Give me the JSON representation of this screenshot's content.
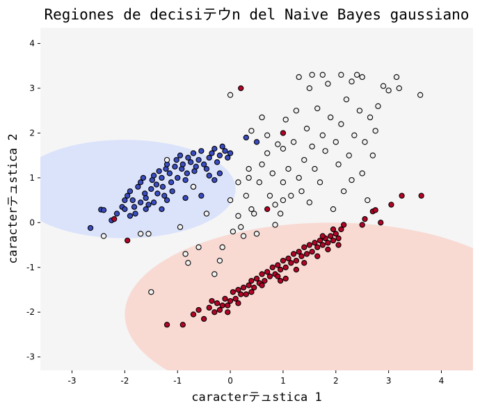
{
  "chart_data": {
    "type": "scatter",
    "title": "Regiones de decisiテウn del Naive Bayes gaussiano",
    "xlabel": "caracterテュstica 1",
    "ylabel": "caracterテュstica 2",
    "xlim": [
      -3.6,
      4.6
    ],
    "ylim": [
      -3.3,
      4.35
    ],
    "xticks": [
      -3,
      -2,
      -1,
      0,
      1,
      2,
      3,
      4
    ],
    "yticks": [
      -3,
      -2,
      -1,
      0,
      1,
      2,
      3,
      4
    ],
    "grid": false,
    "legend": "none",
    "colors": {
      "background": "#f5f5f5",
      "class_0_region": "#dbe3fb",
      "class_2_region": "#f8dad3",
      "class_0_point": "#3a4cc0",
      "class_1_point": "#f2f2f2",
      "class_2_point": "#b40426",
      "edge": "#000000"
    },
    "regions": [
      {
        "class": 0,
        "center": [
          -2.0,
          0.75
        ],
        "radii": [
          2.1,
          1.1
        ]
      },
      {
        "class": 2,
        "center": [
          1.9,
          -2.05
        ],
        "radii": [
          3.9,
          2.05
        ]
      }
    ],
    "series": [
      {
        "class": 0,
        "points": [
          [
            -2.65,
            -0.12
          ],
          [
            -2.45,
            0.29
          ],
          [
            -2.4,
            0.28
          ],
          [
            -2.25,
            0.05
          ],
          [
            -2.15,
            0.2
          ],
          [
            -2.05,
            0.35
          ],
          [
            -2.0,
            0.5
          ],
          [
            -1.95,
            0.6
          ],
          [
            -1.9,
            0.7
          ],
          [
            -1.85,
            0.5
          ],
          [
            -1.82,
            0.35
          ],
          [
            -1.8,
            0.2
          ],
          [
            -1.75,
            0.8
          ],
          [
            -1.7,
            0.9
          ],
          [
            -1.65,
            1.0
          ],
          [
            -1.62,
            0.65
          ],
          [
            -1.6,
            0.55
          ],
          [
            -1.55,
            0.4
          ],
          [
            -1.5,
            0.75
          ],
          [
            -1.48,
            0.95
          ],
          [
            -1.45,
            1.05
          ],
          [
            -1.4,
            0.85
          ],
          [
            -1.38,
            0.65
          ],
          [
            -1.35,
            1.15
          ],
          [
            -1.3,
            1.0
          ],
          [
            -1.28,
            0.8
          ],
          [
            -1.25,
            0.6
          ],
          [
            -1.22,
            1.2
          ],
          [
            -1.2,
            1.3
          ],
          [
            -1.15,
            1.1
          ],
          [
            -1.12,
            0.9
          ],
          [
            -1.1,
            0.7
          ],
          [
            -1.05,
            1.25
          ],
          [
            -1.02,
            1.4
          ],
          [
            -1.0,
            1.0
          ],
          [
            -0.95,
            1.5
          ],
          [
            -0.92,
            1.2
          ],
          [
            -0.9,
            1.3
          ],
          [
            -0.85,
            0.95
          ],
          [
            -0.82,
            1.1
          ],
          [
            -0.8,
            1.45
          ],
          [
            -0.75,
            1.35
          ],
          [
            -0.7,
            1.55
          ],
          [
            -0.68,
            1.15
          ],
          [
            -0.65,
            1.25
          ],
          [
            -0.6,
            1.4
          ],
          [
            -0.55,
            1.6
          ],
          [
            -0.5,
            1.3
          ],
          [
            -0.45,
            1.2
          ],
          [
            -0.4,
            1.45
          ],
          [
            -0.35,
            1.55
          ],
          [
            -0.3,
            1.65
          ],
          [
            -0.25,
            1.35
          ],
          [
            -0.2,
            1.5
          ],
          [
            -0.15,
            1.7
          ],
          [
            -0.1,
            1.6
          ],
          [
            -0.05,
            1.45
          ],
          [
            0.0,
            1.55
          ],
          [
            -0.3,
            0.95
          ],
          [
            -0.55,
            0.6
          ],
          [
            -0.85,
            0.55
          ],
          [
            -1.2,
            0.5
          ],
          [
            -1.6,
            0.3
          ],
          [
            -2.0,
            0.3
          ],
          [
            -1.9,
            0.15
          ],
          [
            -1.7,
            0.45
          ],
          [
            -1.3,
            0.3
          ],
          [
            0.3,
            1.9
          ],
          [
            0.5,
            1.8
          ],
          [
            -0.2,
            1.1
          ],
          [
            -0.4,
            1.05
          ],
          [
            -0.7,
            0.8
          ],
          [
            -1.45,
            0.45
          ]
        ]
      },
      {
        "class": 1,
        "points": [
          [
            -2.4,
            -0.3
          ],
          [
            -1.7,
            -0.25
          ],
          [
            -1.5,
            -1.55
          ],
          [
            -1.2,
            1.4
          ],
          [
            -0.95,
            -0.1
          ],
          [
            -0.85,
            -0.7
          ],
          [
            -0.7,
            0.8
          ],
          [
            -0.6,
            -0.55
          ],
          [
            -0.45,
            0.2
          ],
          [
            -0.3,
            -1.15
          ],
          [
            -0.15,
            -0.55
          ],
          [
            0.0,
            2.85
          ],
          [
            0.05,
            -0.2
          ],
          [
            0.15,
            0.15
          ],
          [
            0.2,
            -0.1
          ],
          [
            0.25,
            -0.3
          ],
          [
            0.3,
            0.6
          ],
          [
            0.35,
            1.0
          ],
          [
            0.4,
            2.05
          ],
          [
            0.4,
            0.3
          ],
          [
            0.45,
            0.2
          ],
          [
            0.5,
            -0.25
          ],
          [
            0.55,
            0.9
          ],
          [
            0.6,
            1.3
          ],
          [
            0.6,
            2.35
          ],
          [
            0.7,
            1.95
          ],
          [
            0.75,
            0.6
          ],
          [
            0.8,
            1.1
          ],
          [
            0.85,
            0.4
          ],
          [
            0.9,
            1.75
          ],
          [
            0.95,
            0.2
          ],
          [
            1.0,
            1.65
          ],
          [
            1.0,
            0.9
          ],
          [
            1.05,
            2.3
          ],
          [
            1.1,
            1.2
          ],
          [
            1.15,
            0.6
          ],
          [
            1.2,
            1.8
          ],
          [
            1.25,
            2.5
          ],
          [
            1.3,
            1.0
          ],
          [
            1.35,
            0.7
          ],
          [
            1.4,
            1.4
          ],
          [
            1.45,
            2.1
          ],
          [
            1.5,
            3.0
          ],
          [
            1.5,
            0.45
          ],
          [
            1.55,
            1.7
          ],
          [
            1.6,
            1.2
          ],
          [
            1.65,
            2.55
          ],
          [
            1.7,
            0.9
          ],
          [
            1.75,
            1.95
          ],
          [
            1.8,
            1.6
          ],
          [
            1.85,
            3.1
          ],
          [
            1.9,
            2.35
          ],
          [
            1.95,
            0.3
          ],
          [
            2.0,
            1.8
          ],
          [
            2.05,
            1.3
          ],
          [
            2.1,
            2.2
          ],
          [
            2.15,
            0.7
          ],
          [
            2.2,
            2.75
          ],
          [
            2.25,
            1.5
          ],
          [
            2.3,
            0.95
          ],
          [
            2.35,
            1.95
          ],
          [
            2.4,
            3.3
          ],
          [
            2.45,
            2.5
          ],
          [
            2.5,
            1.1
          ],
          [
            2.55,
            1.8
          ],
          [
            2.6,
            0.5
          ],
          [
            2.65,
            2.35
          ],
          [
            2.7,
            1.5
          ],
          [
            2.75,
            2.05
          ],
          [
            2.8,
            2.6
          ],
          [
            2.9,
            3.05
          ],
          [
            3.0,
            2.95
          ],
          [
            3.15,
            3.25
          ],
          [
            3.2,
            3.0
          ],
          [
            3.6,
            2.85
          ],
          [
            1.3,
            3.25
          ],
          [
            1.55,
            3.3
          ],
          [
            1.75,
            3.3
          ],
          [
            2.1,
            3.3
          ],
          [
            2.3,
            3.15
          ],
          [
            2.5,
            3.25
          ],
          [
            0.7,
            1.55
          ],
          [
            0.35,
            1.2
          ],
          [
            1.0,
            0.5
          ],
          [
            0.85,
            -0.05
          ],
          [
            -1.55,
            -0.25
          ],
          [
            -0.8,
            -0.9
          ],
          [
            0.15,
            0.9
          ],
          [
            0.0,
            0.5
          ],
          [
            -0.2,
            -0.85
          ]
        ]
      },
      {
        "class": 2,
        "points": [
          [
            -2.2,
            0.08
          ],
          [
            -1.95,
            -0.4
          ],
          [
            0.2,
            3.0
          ],
          [
            1.0,
            2.0
          ],
          [
            0.7,
            0.3
          ],
          [
            -1.2,
            -2.28
          ],
          [
            -0.9,
            -2.28
          ],
          [
            -0.7,
            -2.05
          ],
          [
            -0.6,
            -1.95
          ],
          [
            -0.5,
            -2.15
          ],
          [
            -0.4,
            -1.9
          ],
          [
            -0.35,
            -1.75
          ],
          [
            -0.3,
            -2.0
          ],
          [
            -0.25,
            -1.8
          ],
          [
            -0.2,
            -1.95
          ],
          [
            -0.15,
            -1.85
          ],
          [
            -0.1,
            -1.7
          ],
          [
            -0.05,
            -1.85
          ],
          [
            0.0,
            -1.75
          ],
          [
            0.05,
            -1.55
          ],
          [
            0.1,
            -1.7
          ],
          [
            0.15,
            -1.5
          ],
          [
            0.2,
            -1.6
          ],
          [
            0.25,
            -1.45
          ],
          [
            0.3,
            -1.6
          ],
          [
            0.35,
            -1.4
          ],
          [
            0.4,
            -1.3
          ],
          [
            0.45,
            -1.45
          ],
          [
            0.5,
            -1.25
          ],
          [
            0.55,
            -1.35
          ],
          [
            0.6,
            -1.15
          ],
          [
            0.65,
            -1.3
          ],
          [
            0.7,
            -1.1
          ],
          [
            0.75,
            -1.2
          ],
          [
            0.8,
            -1.0
          ],
          [
            0.85,
            -1.15
          ],
          [
            0.9,
            -0.95
          ],
          [
            0.95,
            -1.05
          ],
          [
            1.0,
            -0.85
          ],
          [
            1.05,
            -1.0
          ],
          [
            1.1,
            -0.8
          ],
          [
            1.15,
            -0.9
          ],
          [
            1.2,
            -0.7
          ],
          [
            1.25,
            -0.85
          ],
          [
            1.3,
            -0.65
          ],
          [
            1.35,
            -0.75
          ],
          [
            1.4,
            -0.55
          ],
          [
            1.45,
            -0.7
          ],
          [
            1.5,
            -0.5
          ],
          [
            1.55,
            -0.65
          ],
          [
            1.6,
            -0.45
          ],
          [
            1.65,
            -0.55
          ],
          [
            1.7,
            -0.4
          ],
          [
            1.75,
            -0.5
          ],
          [
            1.8,
            -0.35
          ],
          [
            1.85,
            -0.45
          ],
          [
            1.9,
            -0.3
          ],
          [
            1.95,
            -0.4
          ],
          [
            2.0,
            -0.25
          ],
          [
            2.05,
            -0.35
          ],
          [
            2.1,
            -0.15
          ],
          [
            2.15,
            -0.05
          ],
          [
            2.5,
            -0.05
          ],
          [
            2.7,
            0.25
          ],
          [
            2.85,
            0.0
          ],
          [
            3.05,
            0.4
          ],
          [
            3.25,
            0.6
          ],
          [
            3.62,
            0.6
          ],
          [
            2.75,
            0.28
          ],
          [
            2.55,
            0.08
          ],
          [
            1.05,
            -1.25
          ],
          [
            0.95,
            -1.3
          ],
          [
            0.4,
            -1.55
          ],
          [
            0.15,
            -1.8
          ],
          [
            -0.05,
            -2.0
          ],
          [
            1.65,
            -0.75
          ],
          [
            1.85,
            -0.6
          ],
          [
            2.05,
            -0.5
          ],
          [
            1.25,
            -1.05
          ],
          [
            0.6,
            -1.4
          ],
          [
            1.4,
            -0.9
          ],
          [
            0.9,
            -1.2
          ],
          [
            1.75,
            -0.3
          ],
          [
            1.95,
            -0.15
          ]
        ]
      }
    ]
  }
}
